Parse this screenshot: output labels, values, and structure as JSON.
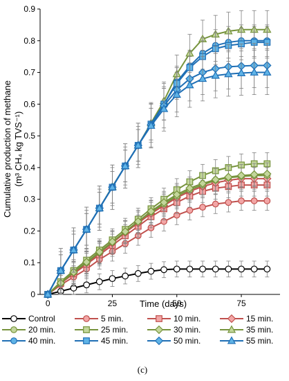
{
  "chart_data": {
    "type": "line",
    "title": "",
    "xlabel": "Time (days)",
    "ylabel_line1": "Cumulative production of methane",
    "ylabel_line2": "(m³ CH₄ kg TVS⁻¹)",
    "xlim": [
      -3,
      90
    ],
    "ylim": [
      0,
      0.9
    ],
    "xticks": [
      0,
      25,
      50,
      75
    ],
    "xtick_labels": [
      "0",
      "25",
      "50",
      "75"
    ],
    "yticks": [
      0,
      0.1,
      0.2,
      0.3,
      0.4,
      0.5,
      0.6,
      0.7,
      0.8,
      0.9
    ],
    "ytick_labels": [
      "0",
      "0.1",
      "0.2",
      "0.3",
      "0.4",
      "0.5",
      "0.6",
      "0.7",
      "0.8",
      "0.9"
    ],
    "grid": false,
    "legend_position": "bottom",
    "caption": "(c)",
    "x": [
      0,
      5,
      10,
      15,
      20,
      25,
      30,
      35,
      40,
      45,
      50,
      55,
      60,
      65,
      70,
      75,
      80,
      85
    ],
    "series": [
      {
        "name": "Control",
        "marker": "circle",
        "color": "#000000",
        "fill": "#ffffff",
        "err": 0.025,
        "values": [
          0,
          0.01,
          0.02,
          0.03,
          0.04,
          0.05,
          0.058,
          0.066,
          0.073,
          0.078,
          0.08,
          0.08,
          0.08,
          0.08,
          0.08,
          0.08,
          0.08,
          0.08
        ]
      },
      {
        "name": "5 min.",
        "marker": "circle",
        "color": "#c0504d",
        "fill": "#f2a6a6",
        "err": 0.03,
        "values": [
          0,
          0.03,
          0.055,
          0.08,
          0.11,
          0.135,
          0.16,
          0.185,
          0.21,
          0.23,
          0.25,
          0.265,
          0.275,
          0.285,
          0.29,
          0.295,
          0.295,
          0.295
        ]
      },
      {
        "name": "10 min.",
        "marker": "square",
        "color": "#c0504d",
        "fill": "#f2a6a6",
        "err": 0.035,
        "values": [
          0,
          0.035,
          0.065,
          0.095,
          0.125,
          0.155,
          0.185,
          0.215,
          0.245,
          0.27,
          0.29,
          0.31,
          0.325,
          0.335,
          0.34,
          0.345,
          0.345,
          0.345
        ]
      },
      {
        "name": "15 min.",
        "marker": "diamond",
        "color": "#c0504d",
        "fill": "#f2a6a6",
        "err": 0.035,
        "values": [
          0,
          0.035,
          0.068,
          0.1,
          0.13,
          0.162,
          0.195,
          0.225,
          0.255,
          0.28,
          0.305,
          0.325,
          0.34,
          0.352,
          0.36,
          0.365,
          0.365,
          0.365
        ]
      },
      {
        "name": "20 min.",
        "marker": "circle",
        "color": "#76933c",
        "fill": "#c3d69b",
        "err": 0.035,
        "values": [
          0,
          0.036,
          0.07,
          0.1,
          0.132,
          0.165,
          0.198,
          0.23,
          0.26,
          0.285,
          0.31,
          0.33,
          0.345,
          0.36,
          0.368,
          0.372,
          0.375,
          0.375
        ]
      },
      {
        "name": "25 min.",
        "marker": "square",
        "color": "#76933c",
        "fill": "#c3d69b",
        "err": 0.035,
        "values": [
          0,
          0.04,
          0.075,
          0.108,
          0.14,
          0.172,
          0.205,
          0.237,
          0.27,
          0.3,
          0.33,
          0.355,
          0.375,
          0.39,
          0.4,
          0.408,
          0.412,
          0.412
        ]
      },
      {
        "name": "30 min.",
        "marker": "diamond",
        "color": "#76933c",
        "fill": "#c3d69b",
        "err": 0.035,
        "values": [
          0,
          0.036,
          0.07,
          0.102,
          0.134,
          0.166,
          0.198,
          0.23,
          0.262,
          0.29,
          0.315,
          0.335,
          0.35,
          0.362,
          0.37,
          0.375,
          0.378,
          0.38
        ]
      },
      {
        "name": "35 min.",
        "marker": "triangle",
        "color": "#76933c",
        "fill": "#c3d69b",
        "err": 0.06,
        "values": [
          0,
          0.075,
          0.14,
          0.205,
          0.272,
          0.34,
          0.405,
          0.47,
          0.54,
          0.61,
          0.695,
          0.76,
          0.805,
          0.82,
          0.83,
          0.835,
          0.835,
          0.835
        ]
      },
      {
        "name": "40 min.",
        "marker": "circle",
        "color": "#1f6fb5",
        "fill": "#5fb3e6",
        "err": 0.05,
        "values": [
          0,
          0.075,
          0.14,
          0.205,
          0.272,
          0.338,
          0.405,
          0.47,
          0.537,
          0.6,
          0.67,
          0.72,
          0.76,
          0.785,
          0.795,
          0.8,
          0.8,
          0.8
        ]
      },
      {
        "name": "45 min.",
        "marker": "square",
        "color": "#1f6fb5",
        "fill": "#5fb3e6",
        "err": 0.05,
        "values": [
          0,
          0.075,
          0.14,
          0.205,
          0.272,
          0.338,
          0.405,
          0.47,
          0.537,
          0.6,
          0.665,
          0.715,
          0.75,
          0.775,
          0.785,
          0.79,
          0.795,
          0.795
        ]
      },
      {
        "name": "50 min.",
        "marker": "diamond",
        "color": "#1f6fb5",
        "fill": "#5fb3e6",
        "err": 0.07,
        "values": [
          0,
          0.075,
          0.14,
          0.205,
          0.272,
          0.338,
          0.405,
          0.47,
          0.535,
          0.595,
          0.645,
          0.68,
          0.7,
          0.712,
          0.718,
          0.72,
          0.722,
          0.722
        ]
      },
      {
        "name": "55 min.",
        "marker": "triangle",
        "color": "#1f6fb5",
        "fill": "#5fb3e6",
        "err": 0.07,
        "values": [
          0,
          0.075,
          0.14,
          0.205,
          0.272,
          0.338,
          0.405,
          0.47,
          0.532,
          0.585,
          0.63,
          0.66,
          0.68,
          0.69,
          0.695,
          0.698,
          0.7,
          0.7
        ]
      }
    ]
  }
}
